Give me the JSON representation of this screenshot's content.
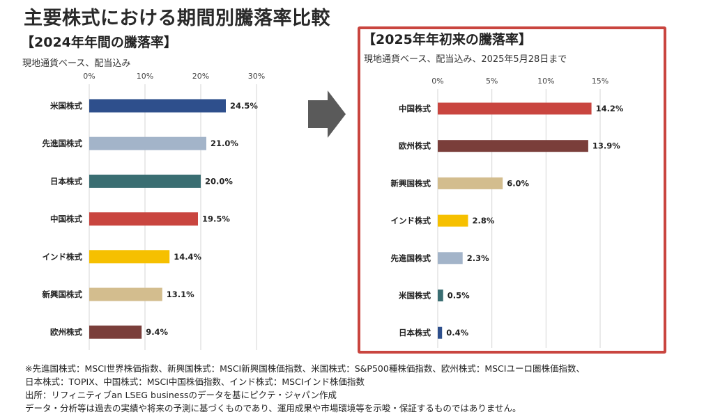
{
  "title": "主要株式における期間別騰落率比較",
  "left_panel": {
    "title": "【2024年年間の騰落率】",
    "subtitle": "現地通貨ベース、配当込み"
  },
  "right_panel": {
    "title": "【2025年年初来の騰落率】",
    "subtitle": "現地通貨ベース、配当込み、2025年5月28日まで"
  },
  "arrow_icon": "right-arrow-icon",
  "highlight_color": "#c9453f",
  "chart_data": [
    {
      "type": "bar",
      "orientation": "horizontal",
      "title": "【2024年年間の騰落率】",
      "subtitle": "現地通貨ベース、配当込み",
      "categories": [
        "米国株式",
        "先進国株式",
        "日本株式",
        "中国株式",
        "インド株式",
        "新興国株式",
        "欧州株式"
      ],
      "values": [
        24.5,
        21.0,
        20.0,
        19.5,
        14.4,
        13.1,
        9.4
      ],
      "value_labels": [
        "24.5%",
        "21.0%",
        "20.0%",
        "19.5%",
        "14.4%",
        "13.1%",
        "9.4%"
      ],
      "colors": [
        "#2e4f8c",
        "#a3b4c9",
        "#3a6e72",
        "#c9453f",
        "#f6c000",
        "#d3bd8e",
        "#7a3e3a"
      ],
      "xlim": [
        0,
        30
      ],
      "ticks": [
        0,
        10,
        20,
        30
      ],
      "tick_labels": [
        "0%",
        "10%",
        "20%",
        "30%"
      ],
      "grid": true
    },
    {
      "type": "bar",
      "orientation": "horizontal",
      "title": "【2025年年初来の騰落率】",
      "subtitle": "現地通貨ベース、配当込み、2025年5月28日まで",
      "categories": [
        "中国株式",
        "欧州株式",
        "新興国株式",
        "インド株式",
        "先進国株式",
        "米国株式",
        "日本株式"
      ],
      "values": [
        14.2,
        13.9,
        6.0,
        2.8,
        2.3,
        0.5,
        0.4
      ],
      "value_labels": [
        "14.2%",
        "13.9%",
        "6.0%",
        "2.8%",
        "2.3%",
        "0.5%",
        "0.4%"
      ],
      "colors": [
        "#c9453f",
        "#7a3e3a",
        "#d3bd8e",
        "#f6c000",
        "#a3b4c9",
        "#3a6e72",
        "#2e4f8c"
      ],
      "xlim": [
        0,
        15
      ],
      "ticks": [
        0,
        5,
        10,
        15
      ],
      "tick_labels": [
        "0%",
        "5%",
        "10%",
        "15%"
      ],
      "grid": true
    }
  ],
  "footnotes": [
    "※先進国株式：MSCI世界株価指数、新興国株式：MSCI新興国株価指数、米国株式：S&P500種株価指数、欧州株式：MSCIユーロ圏株価指数、",
    "日本株式：TOPIX、中国株式：MSCI中国株価指数、インド株式：MSCIインド株価指数",
    "出所：リフィニティブan LSEG businessのデータを基にピクテ・ジャパン作成",
    "データ・分析等は過去の実績や将来の予測に基づくものであり、運用成果や市場環境等を示唆・保証するものではありません。"
  ]
}
